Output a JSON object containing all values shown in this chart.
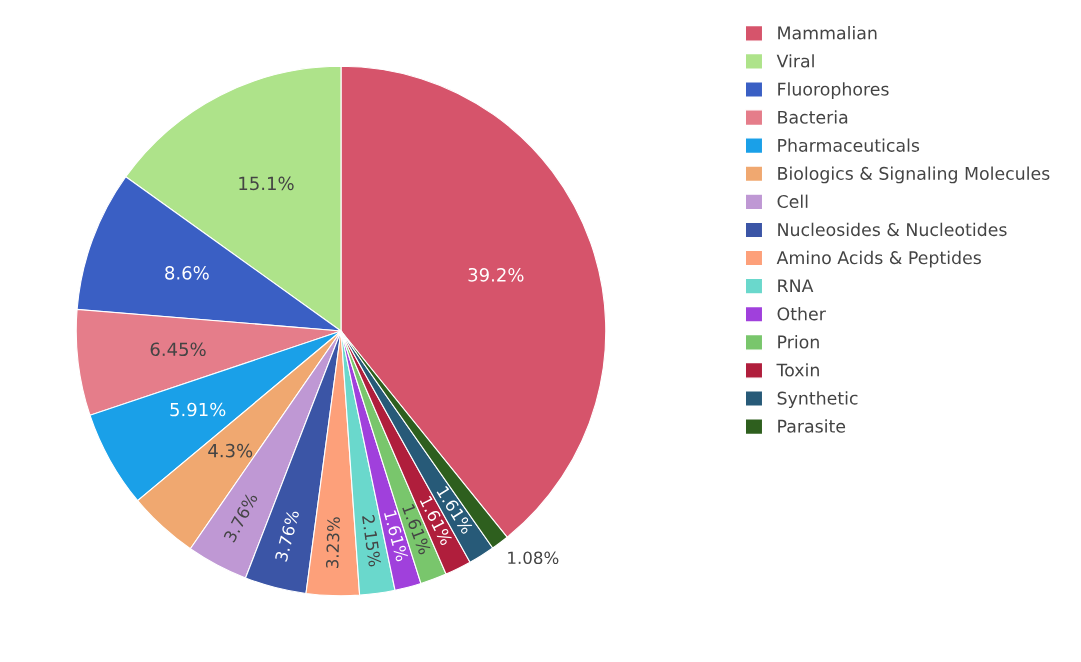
{
  "chart_data": {
    "type": "pie",
    "categories": [
      "Mammalian",
      "Viral",
      "Fluorophores",
      "Bacteria",
      "Pharmaceuticals",
      "Biologics & Signaling Molecules",
      "Cell",
      "Nucleosides & Nucleotides",
      "Amino Acids & Peptides",
      "RNA",
      "Other",
      "Prion",
      "Toxin",
      "Synthetic",
      "Parasite"
    ],
    "values": [
      39.2,
      15.1,
      8.6,
      6.45,
      5.91,
      4.3,
      3.76,
      3.76,
      3.23,
      2.15,
      1.61,
      1.61,
      1.61,
      1.61,
      1.08
    ],
    "value_labels": [
      "39.2%",
      "15.1%",
      "8.6%",
      "6.45%",
      "5.91%",
      "4.3%",
      "3.76%",
      "3.76%",
      "3.23%",
      "2.15%",
      "1.61%",
      "1.61%",
      "1.61%",
      "1.61%",
      "1.08%"
    ],
    "colors": [
      "#d6546b",
      "#aee38a",
      "#3a5fc4",
      "#e57d8a",
      "#1aa0e8",
      "#f0a870",
      "#bf98d4",
      "#3b55a6",
      "#fda07a",
      "#6ad8cc",
      "#a040dc",
      "#79c66c",
      "#b01e3c",
      "#275a78",
      "#2e5f1e"
    ],
    "legend": "top right"
  }
}
